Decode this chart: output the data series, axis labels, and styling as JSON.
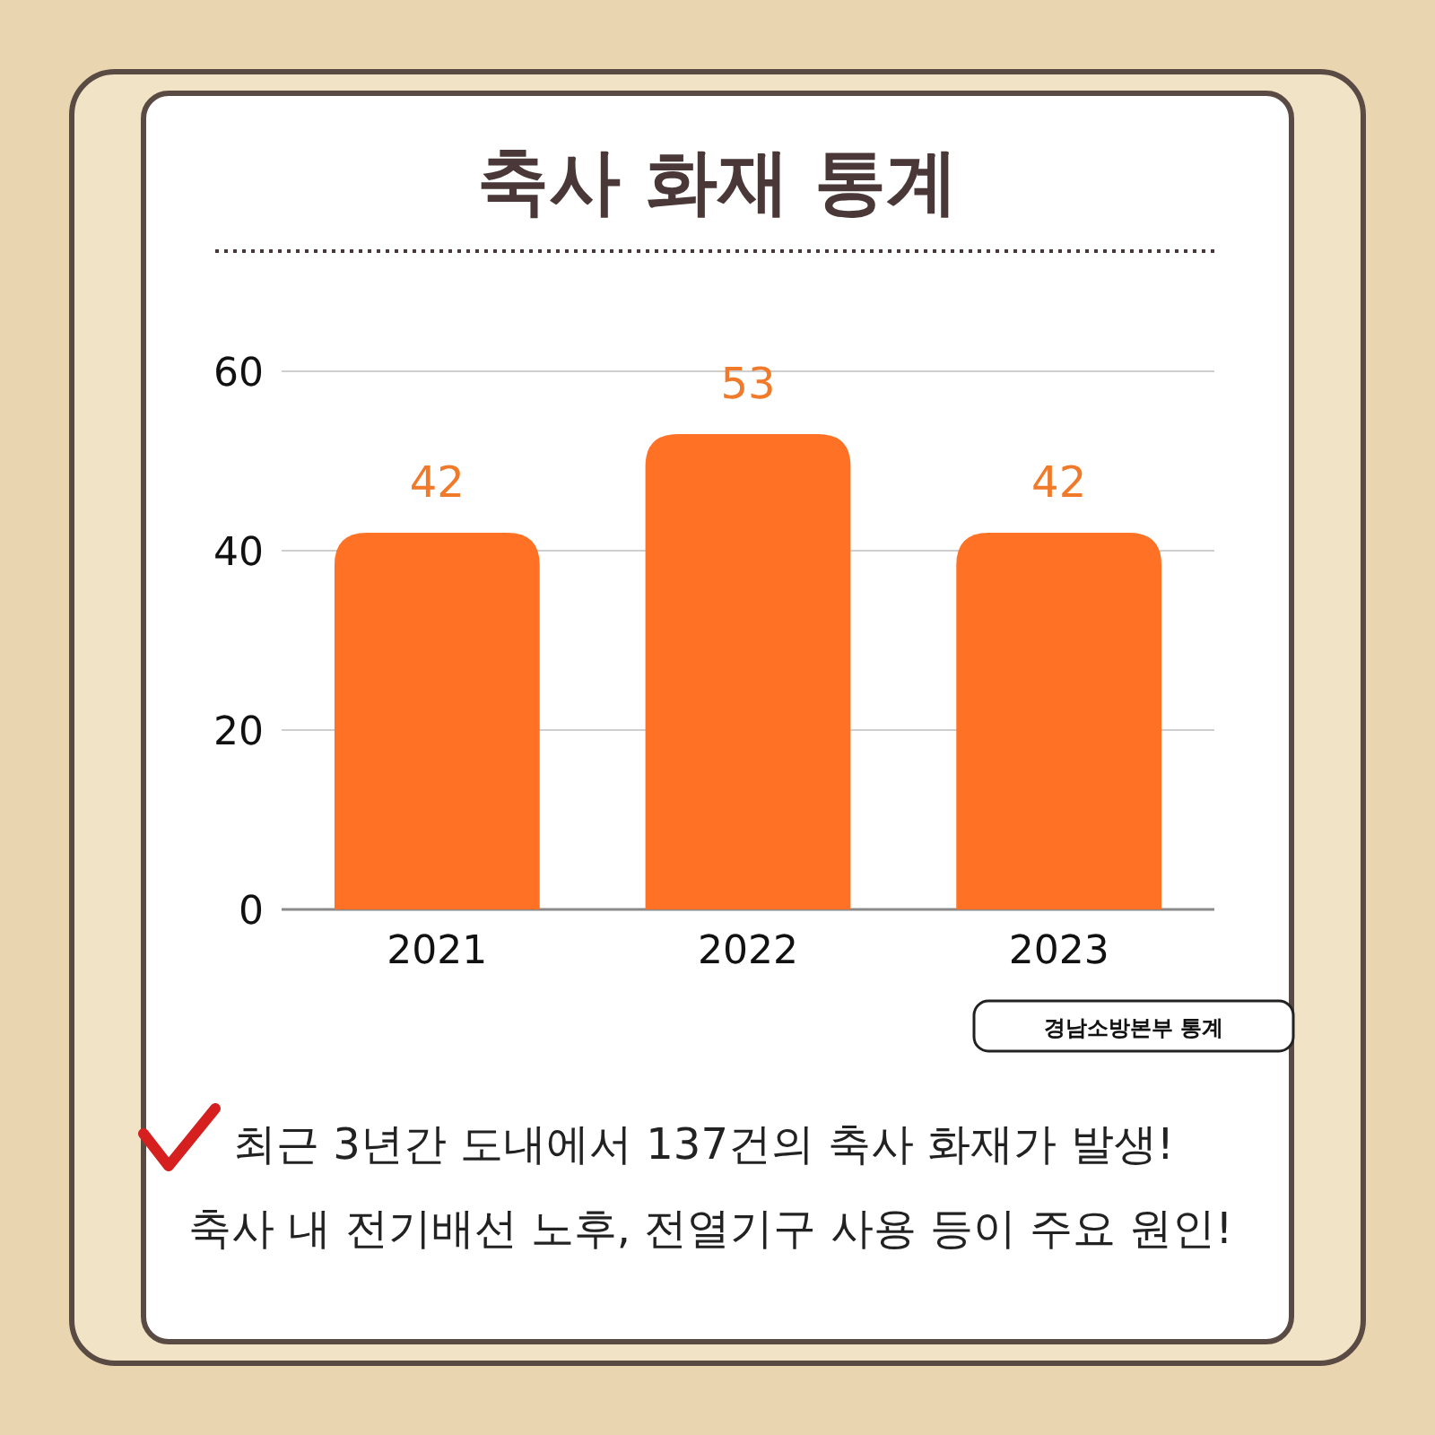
{
  "chart_data": {
    "type": "bar",
    "title": "축사 화재 통계",
    "categories": [
      "2021",
      "2022",
      "2023"
    ],
    "values": [
      42,
      53,
      42
    ],
    "color": "#ff7226",
    "ylim": [
      0,
      60
    ],
    "yticks": [
      0,
      20,
      40,
      60
    ],
    "grid": "y",
    "data_labels": true,
    "annotations": [
      "경남소방본부 통계",
      "최근 3년간 도내에서 137건의 축사 화재가 발생!",
      "축사 내 전기배선 노후, 전열기구 사용 등이 주요 원인!"
    ]
  }
}
